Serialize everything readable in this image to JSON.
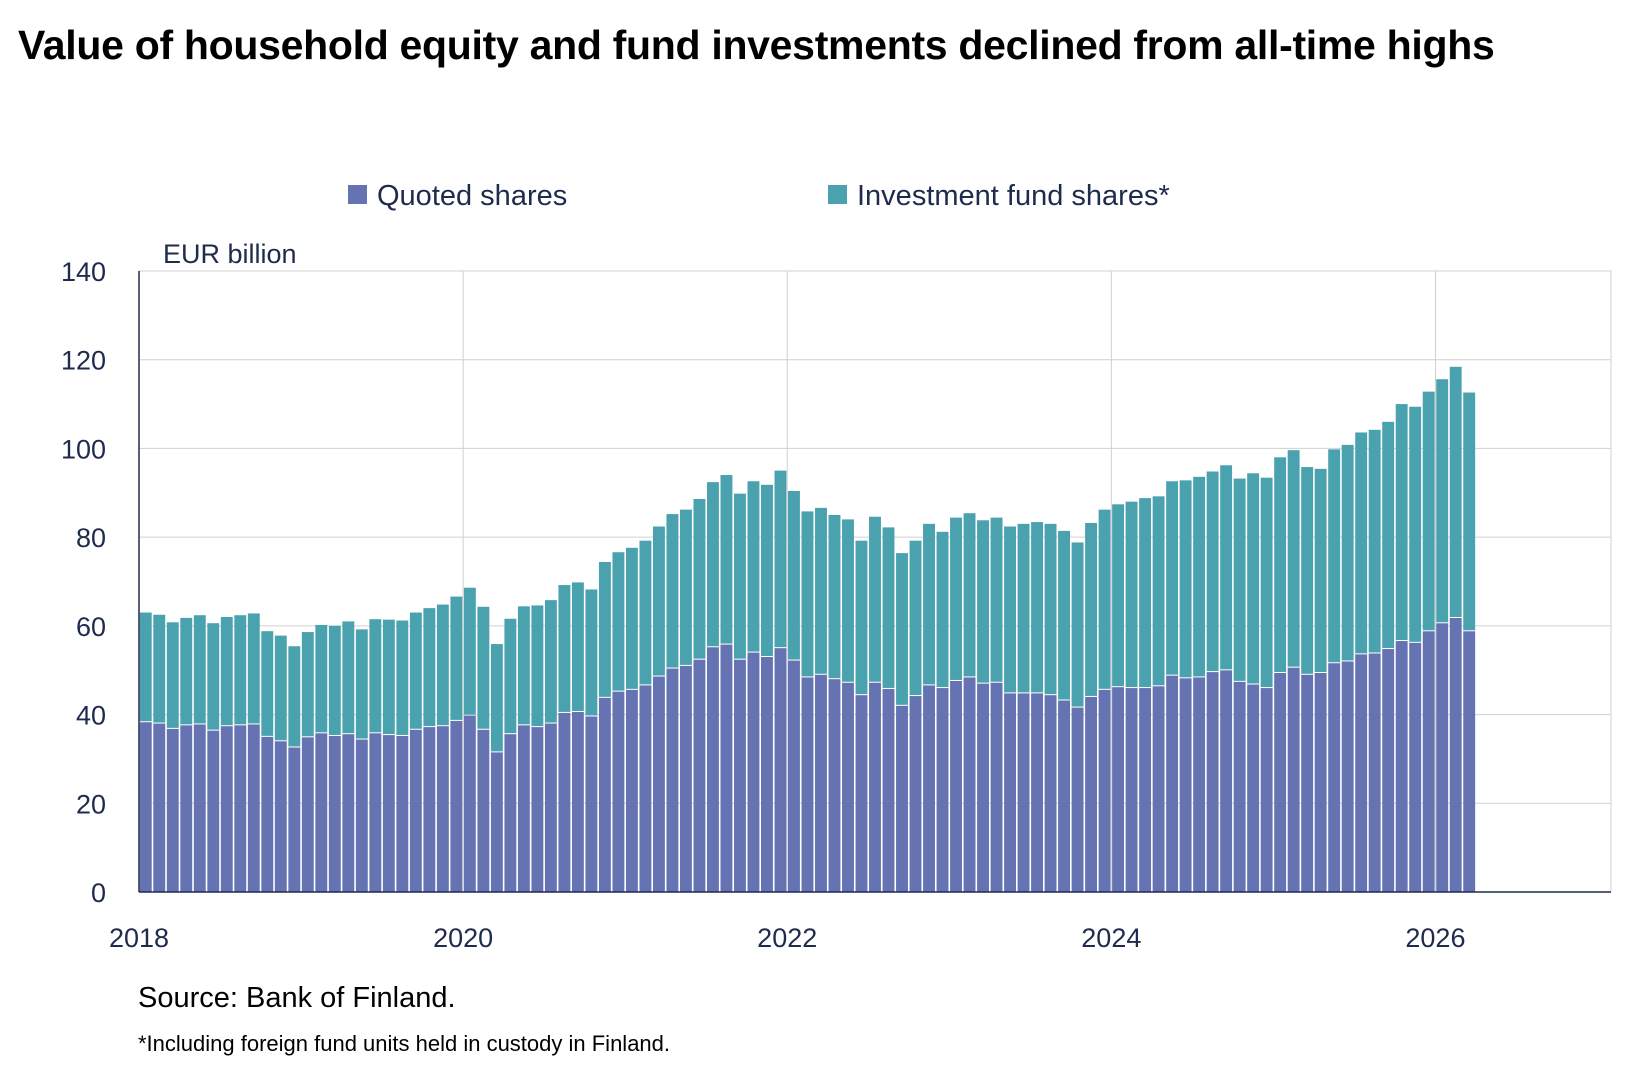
{
  "title": "Value of household equity and fund investments declined from all-time highs",
  "source": "Source: Bank of Finland.",
  "footnote": "*Including foreign fund units held in custody in Finland.",
  "colors": {
    "quoted": "#6573b3",
    "fund": "#4aa2ae",
    "grid": "#d0d0d0",
    "axis": "#1f2b4d"
  },
  "chart_data": {
    "type": "bar",
    "stacked": true,
    "frequency": "monthly",
    "x_start": "2018-01",
    "x_end": "2026-02",
    "unit_label": "EUR billion",
    "ylim": [
      0,
      140
    ],
    "yticks": [
      "0",
      "20",
      "40",
      "60",
      "80",
      "100",
      "120",
      "140"
    ],
    "xticks": [
      "2018",
      "2020",
      "2022",
      "2024",
      "2026"
    ],
    "grid": true,
    "legend_position": "top-center",
    "series": [
      {
        "name": "Quoted shares",
        "values": [
          38.5,
          38.2,
          37.0,
          37.8,
          38.0,
          36.6,
          37.6,
          37.8,
          38.0,
          35.2,
          34.2,
          32.8,
          35.1,
          36.0,
          35.4,
          35.8,
          34.6,
          36.0,
          35.6,
          35.4,
          36.8,
          37.4,
          37.6,
          38.8,
          40.0,
          36.8,
          31.7,
          35.8,
          37.8,
          37.4,
          38.2,
          40.6,
          40.8,
          39.8,
          44.0,
          45.4,
          45.8,
          46.8,
          48.8,
          50.6,
          51.2,
          52.6,
          55.4,
          56.0,
          52.6,
          54.2,
          53.2,
          55.2,
          52.4,
          48.6,
          49.2,
          48.2,
          47.4,
          44.6,
          47.4,
          46.0,
          42.2,
          44.4,
          46.8,
          46.2,
          47.8,
          48.6,
          47.2,
          47.4,
          45.0,
          45.0,
          45.0,
          44.6,
          43.4,
          41.8,
          44.2,
          45.8,
          46.4,
          46.2,
          46.2,
          46.6,
          49.0,
          48.4,
          48.6,
          49.8,
          50.2,
          47.6,
          47.0,
          46.2,
          49.6,
          50.8,
          49.2,
          49.6,
          51.8,
          52.2,
          53.8,
          54.0,
          55.0,
          56.8,
          56.4,
          59.0,
          60.8,
          62.0,
          59.0
        ],
        "totals": [
          63.0,
          62.5,
          60.8,
          61.8,
          62.4,
          60.6,
          62.0,
          62.4,
          62.8,
          58.8,
          57.8,
          55.4,
          58.6,
          60.2,
          60.0,
          61.0,
          59.2,
          61.5,
          61.4,
          61.2,
          63.0,
          64.0,
          64.8,
          66.6,
          68.6,
          64.3,
          55.9,
          61.6,
          64.4,
          64.6,
          65.8,
          69.2,
          69.8,
          68.2,
          74.4,
          76.6,
          77.6,
          79.2,
          82.4,
          85.2,
          86.2,
          88.6,
          92.4,
          94.0,
          89.8,
          92.6,
          91.8,
          95.0,
          90.4,
          85.8,
          86.6,
          85.0,
          84.0,
          79.2,
          84.6,
          82.2,
          76.4,
          79.2,
          83.0,
          81.2,
          84.4,
          85.4,
          83.8,
          84.4,
          82.4,
          83.0,
          83.4,
          83.0,
          81.4,
          78.8,
          83.2,
          86.2,
          87.4,
          88.0,
          88.8,
          89.2,
          92.6,
          92.8,
          93.6,
          94.8,
          96.2,
          93.2,
          94.4,
          93.4,
          98.0,
          99.6,
          95.8,
          95.4,
          99.8,
          100.8,
          103.6,
          104.2,
          106.0,
          110.0,
          109.4,
          112.8,
          115.6,
          118.4,
          112.6
        ]
      },
      {
        "name": "Investment fund shares*",
        "note": "stacked on top of Quoted shares; totals are the top of each stack",
        "values": [
          24.5,
          24.3,
          23.8,
          24.0,
          24.4,
          24.0,
          24.4,
          24.6,
          24.8,
          23.6,
          23.6,
          22.6,
          23.5,
          24.2,
          24.6,
          25.2,
          24.6,
          25.5,
          25.8,
          25.8,
          26.2,
          26.6,
          27.2,
          27.8,
          28.6,
          27.5,
          24.2,
          25.8,
          26.6,
          27.2,
          27.6,
          28.6,
          29.0,
          28.4,
          30.4,
          31.2,
          31.8,
          32.4,
          33.6,
          34.6,
          35.0,
          36.0,
          37.0,
          38.0,
          37.2,
          38.4,
          38.6,
          39.8,
          38.0,
          37.2,
          37.4,
          36.8,
          36.6,
          34.6,
          37.2,
          36.2,
          34.2,
          34.8,
          36.2,
          35.0,
          36.6,
          36.8,
          36.6,
          37.0,
          37.4,
          38.0,
          38.4,
          38.4,
          38.0,
          37.0,
          39.0,
          40.4,
          41.0,
          41.8,
          42.6,
          42.6,
          43.6,
          44.4,
          45.0,
          45.0,
          46.0,
          45.6,
          47.4,
          47.2,
          48.4,
          48.8,
          46.6,
          45.8,
          48.0,
          48.6,
          49.8,
          50.2,
          51.0,
          53.2,
          53.0,
          53.8,
          54.8,
          56.4,
          53.6
        ]
      }
    ]
  }
}
